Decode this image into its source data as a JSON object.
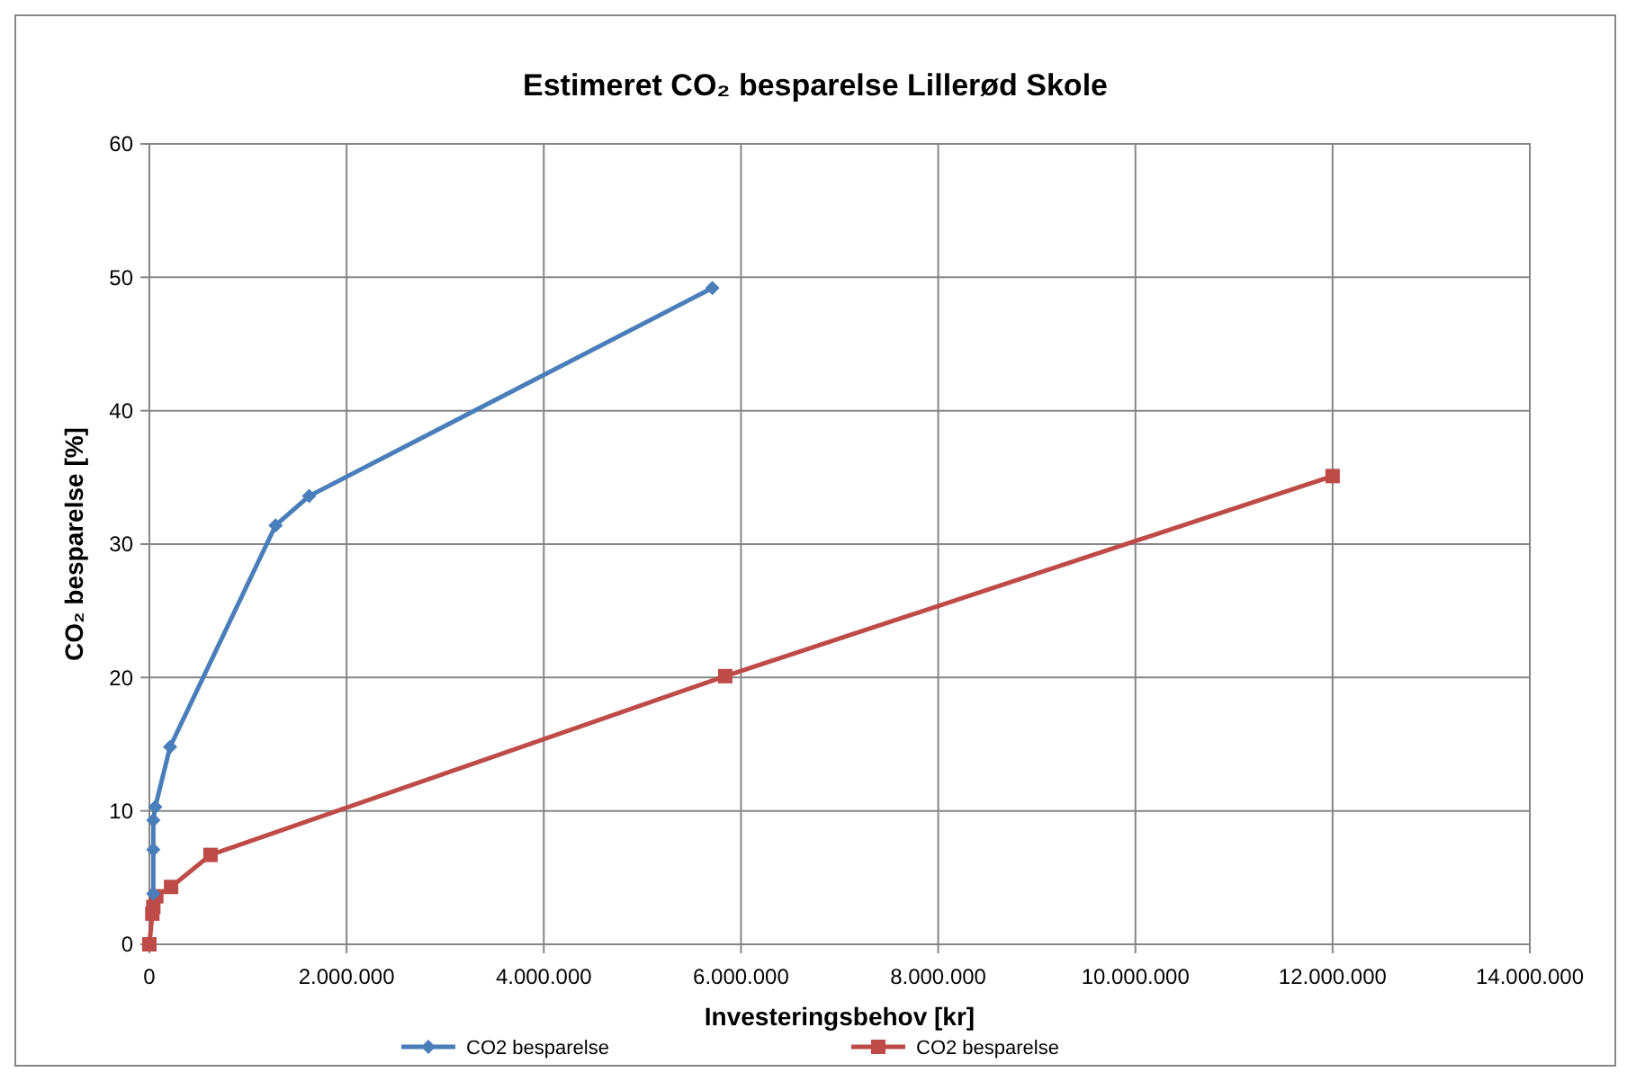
{
  "chart_data": {
    "type": "line",
    "title": "Estimeret CO₂ besparelse Lillerød Skole",
    "xlabel": "Investeringsbehov [kr]",
    "ylabel": "CO₂ besparelse [%]",
    "xlim": [
      0,
      14000000
    ],
    "xticks": [
      0,
      {
        "value": 2000000,
        "label": "2.000.000"
      },
      {
        "value": 4000000,
        "label": "4.000.000"
      },
      {
        "value": 6000000,
        "label": "6.000.000"
      },
      {
        "value": 8000000,
        "label": "8.000.000"
      },
      {
        "value": 10000000,
        "label": "10.000.000"
      },
      {
        "value": 12000000,
        "label": "12.000.000"
      },
      {
        "value": 14000000,
        "label": "14.000.000"
      }
    ],
    "ylim": [
      0,
      60
    ],
    "yticks": [
      0,
      10,
      20,
      30,
      40,
      50,
      60
    ],
    "grid": true,
    "legend": "bottom",
    "series": [
      {
        "name": "CO2 besparelse",
        "color": "#4a7ebb",
        "marker": "diamond",
        "x": [
          40000,
          40000,
          40000,
          60000,
          210000,
          1280000,
          1620000,
          5710000
        ],
        "values": [
          3.8,
          7.1,
          9.3,
          10.3,
          14.8,
          31.4,
          33.6,
          49.2
        ]
      },
      {
        "name": "CO2 besparelse",
        "color": "#be4b48",
        "marker": "square",
        "x": [
          0,
          30000,
          40000,
          70000,
          220000,
          620000,
          5840000,
          12000000
        ],
        "values": [
          0,
          2.3,
          2.8,
          3.6,
          4.3,
          6.7,
          20.1,
          35.1
        ]
      }
    ]
  }
}
